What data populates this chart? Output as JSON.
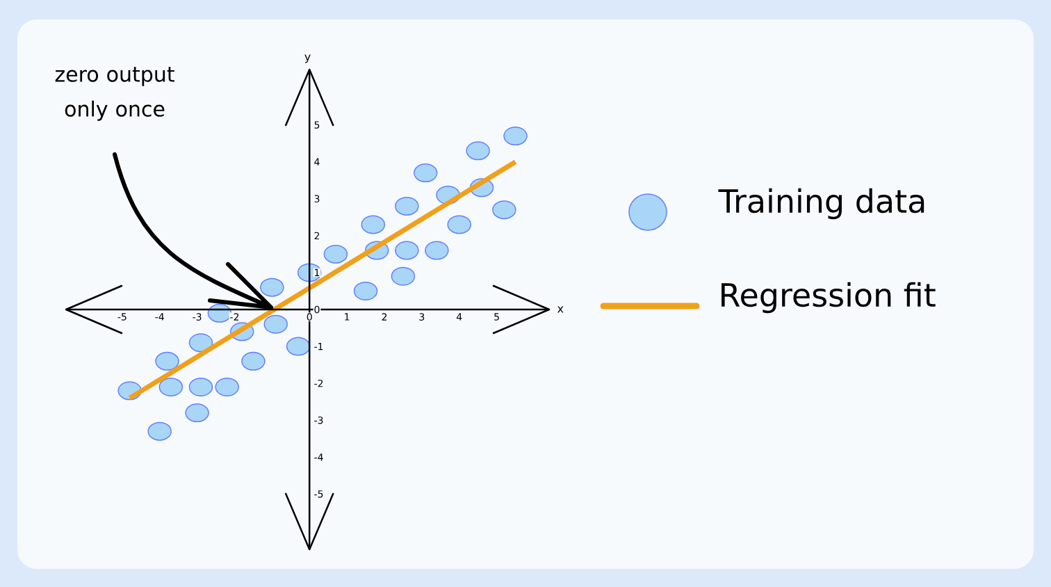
{
  "chart_data": {
    "type": "scatter",
    "xlabel": "x",
    "ylabel": "y",
    "xlim": [
      -6.5,
      6.4
    ],
    "ylim": [
      -6.5,
      6.5
    ],
    "xticks": [
      -5,
      -4,
      -3,
      -2,
      0,
      1,
      2,
      3,
      4,
      5
    ],
    "yticks": [
      -5,
      -4,
      -3,
      -2,
      -1,
      0,
      1,
      2,
      3,
      4,
      5
    ],
    "marker": "circle",
    "legend": "right",
    "annotations": [
      "zero output only once"
    ],
    "series": [
      {
        "name": "Training data",
        "color": "#a9d6f7",
        "x": [
          -4.8,
          -4.0,
          -3.8,
          -3.7,
          -3.0,
          -2.9,
          -2.9,
          -2.4,
          -2.2,
          -1.8,
          -1.5,
          -1.0,
          -0.9,
          -0.3,
          0.0,
          0.7,
          1.5,
          1.7,
          1.8,
          2.5,
          2.6,
          2.6,
          3.1,
          3.4,
          3.7,
          4.0,
          4.5,
          4.6,
          5.2,
          5.5
        ],
        "values": [
          -2.2,
          -3.3,
          -1.4,
          -2.1,
          -2.8,
          -0.9,
          -2.1,
          -0.1,
          -2.1,
          -0.6,
          -1.4,
          0.6,
          -0.4,
          -1.0,
          1.0,
          1.5,
          0.5,
          2.3,
          1.6,
          0.9,
          2.8,
          1.6,
          3.7,
          1.6,
          3.1,
          2.3,
          4.3,
          3.3,
          2.7,
          4.7
        ]
      },
      {
        "name": "Regression fit",
        "type": "line",
        "marker": "none",
        "color": "#f0a01a",
        "x": [
          -4.8,
          5.5
        ],
        "values": [
          -2.4,
          4.0
        ]
      }
    ]
  }
}
